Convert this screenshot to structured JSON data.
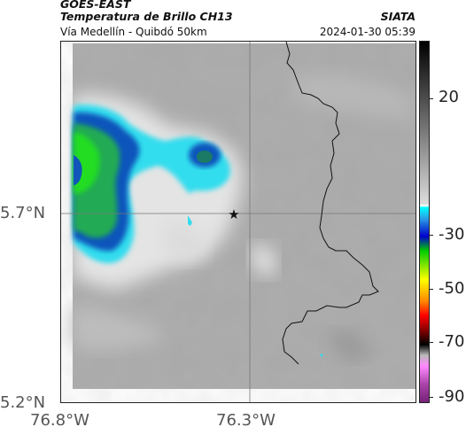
{
  "header": {
    "satellite": "GOES-EAST",
    "product": "Temperatura de Brillo CH13",
    "route": "Vía Medellín - Quibdó 50km",
    "org": "SIATA",
    "timestamp": "2024-01-30 05:39"
  },
  "axes": {
    "lat_labels": [
      "5.7°N",
      "5.2°N"
    ],
    "lon_labels": [
      "76.8°W",
      "76.3°W"
    ]
  },
  "colorbar": {
    "labels": [
      "20",
      "-30",
      "-50",
      "-70",
      "-90"
    ]
  },
  "colors": {
    "cloud_cyan": "#33ddee",
    "cloud_blue": "#1155bb",
    "cloud_green": "#22cc22",
    "background_gray": "#a8a8a8"
  }
}
